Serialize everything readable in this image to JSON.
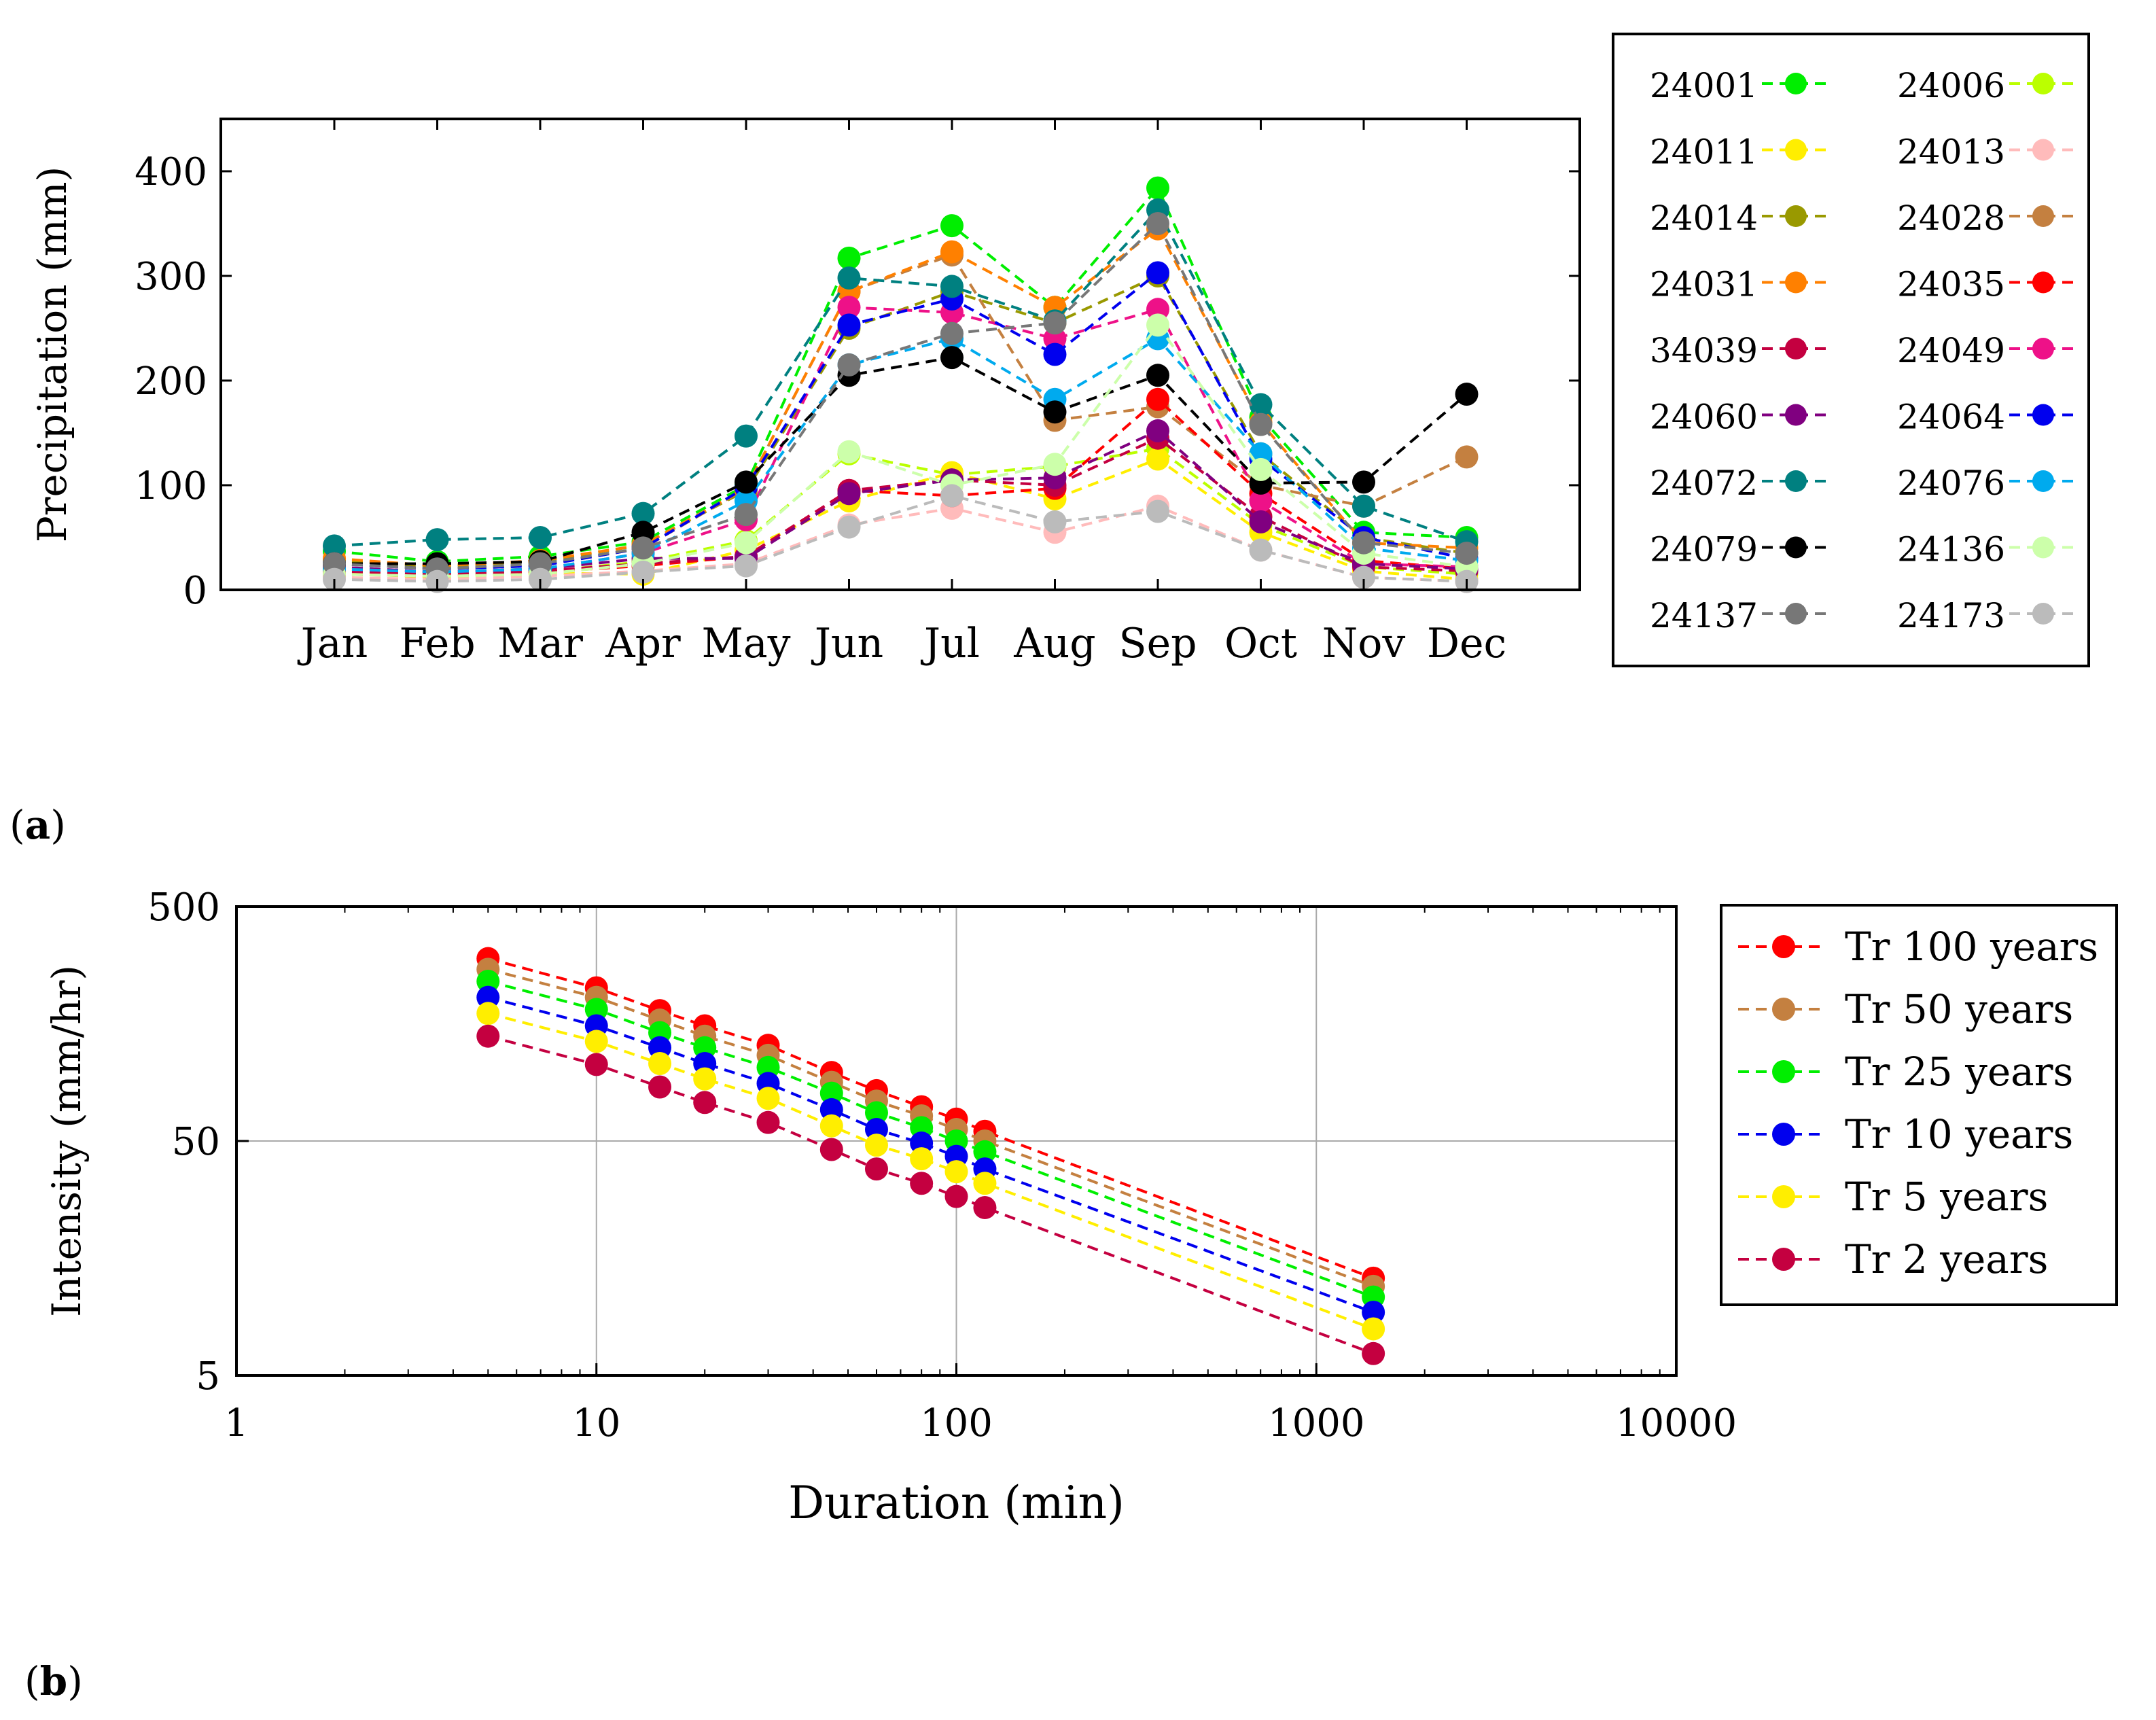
{
  "chart_data": [
    {
      "type": "line",
      "panel": "a",
      "xlabel": "",
      "ylabel": "Precipitation (mm)",
      "categories": [
        "Jan",
        "Feb",
        "Mar",
        "Apr",
        "May",
        "Jun",
        "Jul",
        "Aug",
        "Sep",
        "Oct",
        "Nov",
        "Dec"
      ],
      "ylim": [
        0,
        450
      ],
      "yticks": [
        "0",
        "100",
        "200",
        "300",
        "400"
      ],
      "legend_position": "right",
      "series": [
        {
          "name": "24001",
          "color": "#00ee00",
          "values": [
            37,
            27,
            32,
            46,
            100,
            317,
            348,
            270,
            384,
            165,
            55,
            50
          ]
        },
        {
          "name": "24006",
          "color": "#bbff00",
          "values": [
            18,
            15,
            17,
            27,
            47,
            130,
            110,
            118,
            135,
            62,
            22,
            15
          ]
        },
        {
          "name": "24011",
          "color": "#ffee00",
          "values": [
            16,
            12,
            16,
            15,
            38,
            85,
            112,
            87,
            125,
            55,
            18,
            10
          ]
        },
        {
          "name": "24013",
          "color": "#ffbbbb",
          "values": [
            12,
            10,
            13,
            18,
            25,
            62,
            78,
            55,
            80,
            38,
            12,
            8
          ]
        },
        {
          "name": "24014",
          "color": "#999900",
          "values": [
            28,
            22,
            27,
            43,
            95,
            250,
            285,
            255,
            300,
            130,
            50,
            35
          ]
        },
        {
          "name": "24028",
          "color": "#c48040",
          "values": [
            25,
            20,
            23,
            40,
            97,
            285,
            320,
            162,
            175,
            100,
            80,
            127
          ]
        },
        {
          "name": "24031",
          "color": "#ff8000",
          "values": [
            30,
            23,
            28,
            43,
            97,
            285,
            323,
            270,
            345,
            160,
            45,
            40
          ]
        },
        {
          "name": "24035",
          "color": "#ff0000",
          "values": [
            15,
            13,
            17,
            23,
            32,
            95,
            90,
            97,
            182,
            92,
            28,
            20
          ]
        },
        {
          "name": "34039",
          "color": "#c40040",
          "values": [
            18,
            15,
            18,
            25,
            32,
            95,
            105,
            100,
            145,
            70,
            22,
            18
          ]
        },
        {
          "name": "24049",
          "color": "#ee1188",
          "values": [
            20,
            17,
            20,
            35,
            67,
            270,
            265,
            240,
            268,
            85,
            25,
            22
          ]
        },
        {
          "name": "24060",
          "color": "#800080",
          "values": [
            22,
            17,
            20,
            30,
            30,
            92,
            105,
            107,
            152,
            65,
            25,
            20
          ]
        },
        {
          "name": "24064",
          "color": "#0000ee",
          "values": [
            25,
            20,
            23,
            40,
            98,
            253,
            278,
            225,
            303,
            125,
            50,
            30
          ]
        },
        {
          "name": "24072",
          "color": "#008080",
          "values": [
            42,
            48,
            50,
            73,
            147,
            298,
            290,
            257,
            363,
            177,
            80,
            46
          ]
        },
        {
          "name": "24076",
          "color": "#00aaee",
          "values": [
            20,
            17,
            20,
            35,
            85,
            215,
            240,
            182,
            240,
            130,
            40,
            28
          ]
        },
        {
          "name": "24079",
          "color": "#000000",
          "values": [
            25,
            25,
            27,
            55,
            103,
            205,
            222,
            170,
            205,
            102,
            103,
            187
          ]
        },
        {
          "name": "24136",
          "color": "#ccffaa",
          "values": [
            15,
            13,
            15,
            25,
            45,
            132,
            100,
            120,
            253,
            115,
            35,
            22
          ]
        },
        {
          "name": "24137",
          "color": "#777777",
          "values": [
            25,
            20,
            25,
            40,
            72,
            215,
            245,
            255,
            350,
            158,
            45,
            35
          ]
        },
        {
          "name": "24173",
          "color": "#bbbbbb",
          "values": [
            10,
            8,
            10,
            17,
            23,
            60,
            90,
            65,
            75,
            38,
            12,
            8
          ]
        }
      ]
    },
    {
      "type": "line",
      "panel": "b",
      "xscale": "log",
      "yscale": "log",
      "xlabel": "Duration (min)",
      "ylabel": "Intensity (mm/hr)",
      "xlim": [
        1,
        10000
      ],
      "ylim": [
        5,
        500
      ],
      "xticks": [
        "1",
        "10",
        "100",
        "1000",
        "10000"
      ],
      "yticks": [
        "5",
        "50",
        "500"
      ],
      "legend_position": "right",
      "x": [
        5,
        10,
        15,
        20,
        30,
        45,
        60,
        80,
        100,
        120,
        1440
      ],
      "series": [
        {
          "name": "Tr 100 years",
          "color": "#ff0000",
          "values": [
            300,
            225,
            180,
            155,
            128,
            98,
            82,
            70,
            62,
            55,
            13
          ]
        },
        {
          "name": "Tr 50 years",
          "color": "#c48040",
          "values": [
            270,
            205,
            164,
            140,
            116,
            89,
            74,
            64,
            56,
            50,
            12
          ]
        },
        {
          "name": "Tr 25 years",
          "color": "#00ee00",
          "values": [
            240,
            182,
            145,
            125,
            103,
            80,
            66,
            57,
            50,
            45,
            10.8
          ]
        },
        {
          "name": "Tr 10 years",
          "color": "#0000ee",
          "values": [
            205,
            155,
            125,
            107,
            88,
            68,
            56,
            49,
            43,
            38,
            9.3
          ]
        },
        {
          "name": "Tr 5 years",
          "color": "#ffee00",
          "values": [
            175,
            133,
            107,
            92,
            76,
            58,
            48,
            42,
            37,
            33,
            7.9
          ]
        },
        {
          "name": "Tr 2 years",
          "color": "#c40040",
          "values": [
            140,
            106,
            85,
            73,
            60,
            46,
            38,
            33,
            29,
            26,
            6.2
          ]
        }
      ]
    }
  ],
  "labels": {
    "a": "a",
    "b": "b"
  }
}
